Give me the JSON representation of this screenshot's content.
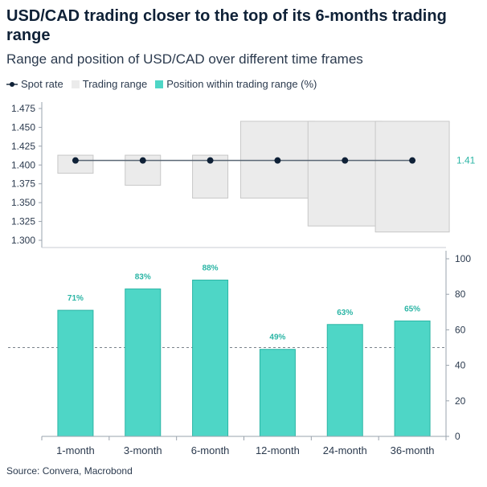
{
  "header": {
    "title": "USD/CAD trading closer to the top of its 6-months trading range",
    "subtitle": "Range and position of USD/CAD over different time frames"
  },
  "legend": {
    "spot": "Spot rate",
    "range": "Trading range",
    "position": "Position within trading range (%)"
  },
  "source": "Source: Convera, Macrobond",
  "colors": {
    "spot": "#0f2137",
    "spot_line": "#5a6775",
    "range_fill": "#ebebeb",
    "range_stroke": "#c8c8c8",
    "bar": "#4ed6c6",
    "bar_stroke": "#2bb5a5",
    "label": "#2bb5a5"
  },
  "chart_data": [
    {
      "type": "range",
      "categories": [
        "1-month",
        "3-month",
        "6-month",
        "12-month",
        "24-month",
        "36-month"
      ],
      "range_low": [
        1.389,
        1.373,
        1.356,
        1.356,
        1.319,
        1.311
      ],
      "range_high": [
        1.413,
        1.413,
        1.413,
        1.458,
        1.458,
        1.458
      ],
      "spot": [
        1.406,
        1.406,
        1.406,
        1.406,
        1.406,
        1.406
      ],
      "spot_label": "1.41",
      "ylim": [
        1.3,
        1.475
      ],
      "yticks": [
        "1.475",
        "1.450",
        "1.425",
        "1.400",
        "1.375",
        "1.350",
        "1.325",
        "1.300"
      ],
      "ytick_values": [
        1.475,
        1.45,
        1.425,
        1.4,
        1.375,
        1.35,
        1.325,
        1.3
      ]
    },
    {
      "type": "bar",
      "categories": [
        "1-month",
        "3-month",
        "6-month",
        "12-month",
        "24-month",
        "36-month"
      ],
      "values": [
        71,
        83,
        88,
        49,
        63,
        65
      ],
      "value_labels": [
        "71%",
        "83%",
        "88%",
        "49%",
        "63%",
        "65%"
      ],
      "reference_line": 50,
      "ylim": [
        0,
        100
      ],
      "yticks": [
        "100",
        "80",
        "60",
        "40",
        "20",
        "0"
      ],
      "ytick_values": [
        100,
        80,
        60,
        40,
        20,
        0
      ]
    }
  ]
}
